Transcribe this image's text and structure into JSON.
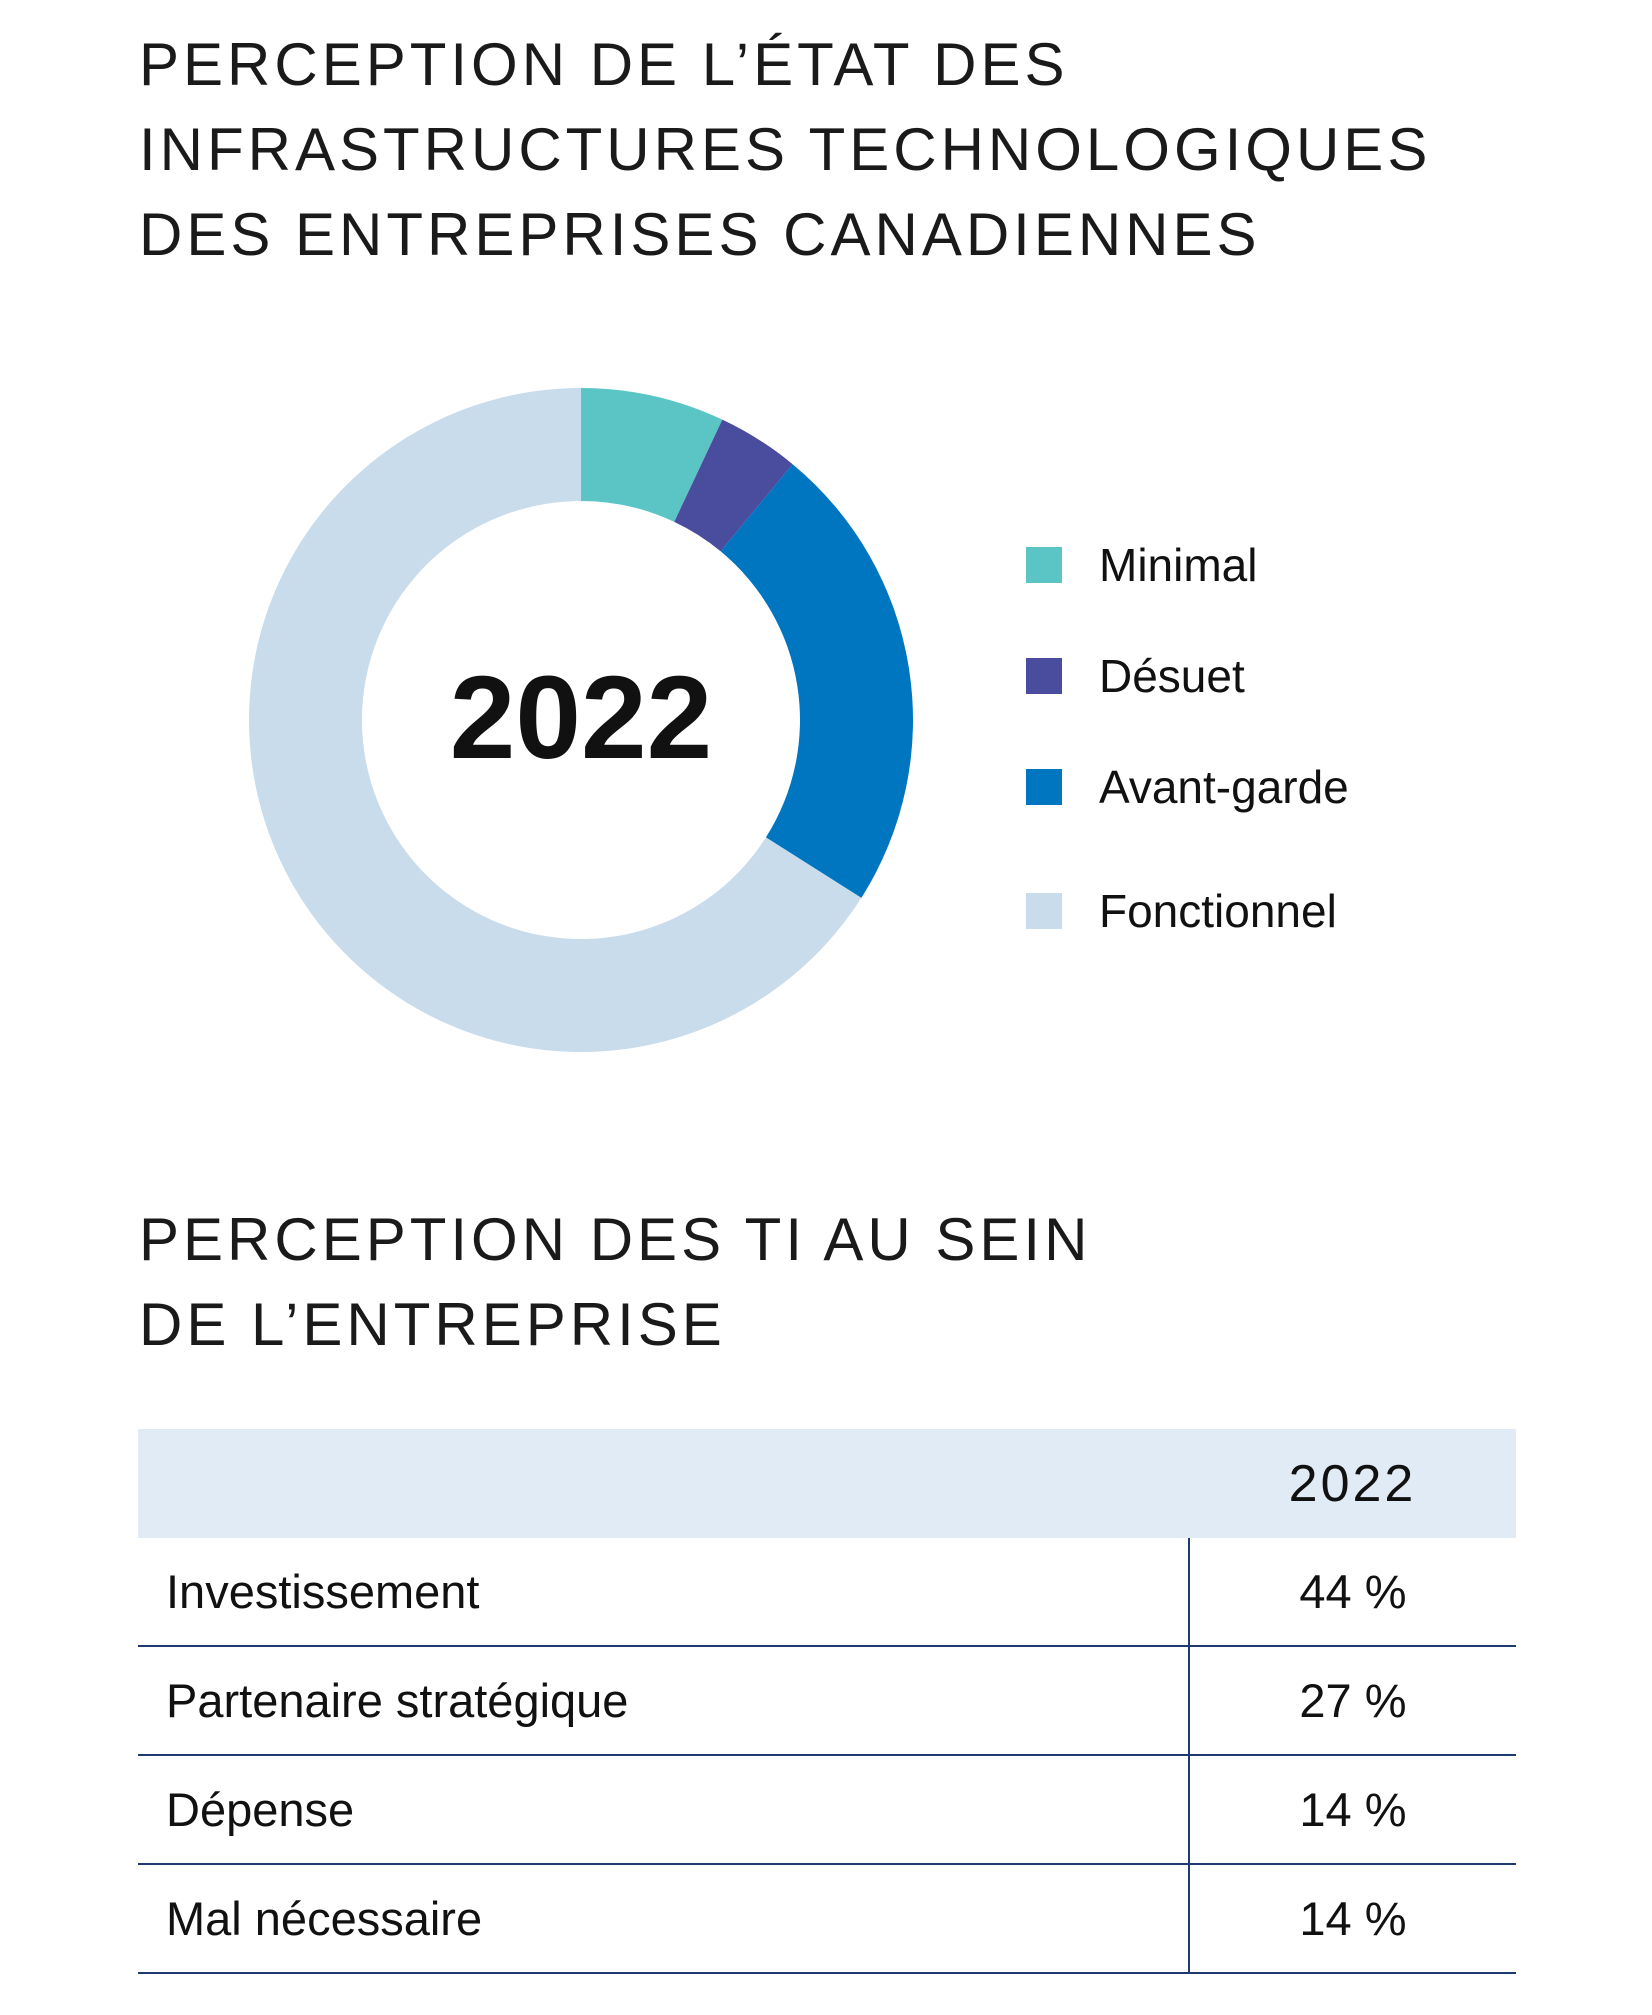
{
  "titles": {
    "chart_title_lines": [
      "PERCEPTION DE L’ÉTAT DES",
      "INFRASTRUCTURES TECHNOLOGIQUES",
      "DES ENTREPRISES CANADIENNES"
    ],
    "table_title_lines": [
      "PERCEPTION DES TI AU SEIN",
      "DE L’ENTREPRISE"
    ]
  },
  "chart_data": {
    "type": "pie",
    "title": "PERCEPTION DE L’ÉTAT DES INFRASTRUCTURES TECHNOLOGIQUES DES ENTREPRISES CANADIENNES",
    "center_label": "2022",
    "legend_position": "right",
    "categories": [
      "Minimal",
      "Désuet",
      "Avant-garde",
      "Fonctionnel"
    ],
    "values": [
      7,
      4,
      23,
      66
    ],
    "colors": [
      "#5bc5c5",
      "#4a4c9e",
      "#0075c0",
      "#c8dcec"
    ]
  },
  "table": {
    "column_header": "2022",
    "rows": [
      {
        "label": "Investissement",
        "value": "44 %"
      },
      {
        "label": "Partenaire stratégique",
        "value": "27 %"
      },
      {
        "label": "Dépense",
        "value": "14 %"
      },
      {
        "label": "Mal nécessaire",
        "value": "14 %"
      }
    ]
  }
}
